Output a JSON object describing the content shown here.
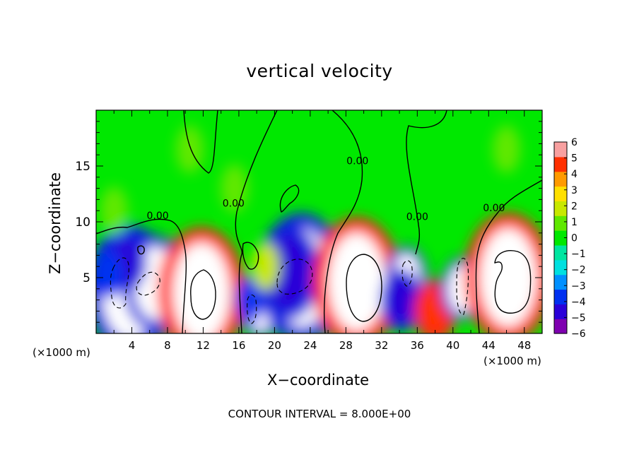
{
  "chart_data": {
    "type": "heatmap",
    "title": "vertical velocity",
    "xlabel": "X−coordinate",
    "ylabel": "Z−coordinate",
    "x_unit_left": "(×1000 m)",
    "x_unit_right": "(×1000 m)",
    "x_ticks": [
      4,
      8,
      12,
      16,
      20,
      24,
      28,
      32,
      36,
      40,
      44,
      48
    ],
    "y_ticks": [
      5,
      10,
      15
    ],
    "xlim": [
      0,
      50
    ],
    "ylim": [
      0,
      20
    ],
    "colorbar": {
      "ticks": [
        6,
        5,
        4,
        3,
        2,
        1,
        0,
        -1,
        -2,
        -3,
        -4,
        -5,
        -6
      ],
      "tick_labels": [
        "6",
        "5",
        "4",
        "3",
        "2",
        "1",
        "0",
        "−1",
        "−2",
        "−3",
        "−4",
        "−5",
        "−6"
      ],
      "range": [
        -6,
        6
      ],
      "colors": [
        "#7f00b0",
        "#2a00d8",
        "#0030f0",
        "#0090ff",
        "#00e0e0",
        "#00e6a0",
        "#00e800",
        "#60e800",
        "#c8e800",
        "#ffe000",
        "#ff9a00",
        "#ff3000",
        "#f8a0a0"
      ]
    },
    "contour_labels": [
      {
        "text": "0.00",
        "x": 6.9,
        "y": 10.5
      },
      {
        "text": "0.00",
        "x": 15.4,
        "y": 11.6
      },
      {
        "text": "0.00",
        "x": 29.3,
        "y": 15.4
      },
      {
        "text": "0.00",
        "x": 36.0,
        "y": 10.4
      },
      {
        "text": "0.00",
        "x": 44.6,
        "y": 11.2
      }
    ],
    "cells": [
      {
        "x": 3.8,
        "y": 3.9,
        "w": 3,
        "v": -6
      },
      {
        "x": 6.6,
        "y": 4.5,
        "w": 2,
        "v": -6
      },
      {
        "x": 3.3,
        "y": 6.4,
        "w": 1,
        "v": -5
      },
      {
        "x": 1.5,
        "y": 5.3,
        "w": 1,
        "v": -4
      },
      {
        "x": 11.8,
        "y": 3.7,
        "w": 3,
        "v": 6
      },
      {
        "x": 18.4,
        "y": 2.3,
        "w": 1,
        "v": -6
      },
      {
        "x": 23.0,
        "y": 5.0,
        "w": 3,
        "v": -6
      },
      {
        "x": 21.5,
        "y": 5.5,
        "w": 2,
        "v": -5
      },
      {
        "x": 17.2,
        "y": 3.0,
        "w": 1,
        "v": -4
      },
      {
        "x": 29.2,
        "y": 4.6,
        "w": 3,
        "v": 6
      },
      {
        "x": 34.8,
        "y": 5.0,
        "w": 1,
        "v": -6
      },
      {
        "x": 34.2,
        "y": 3.0,
        "w": 1,
        "v": -5
      },
      {
        "x": 38.0,
        "y": 2.0,
        "w": 1,
        "v": 5
      },
      {
        "x": 41.0,
        "y": 4.0,
        "w": 1,
        "v": -6
      },
      {
        "x": 46.2,
        "y": 5.0,
        "w": 3,
        "v": 6
      },
      {
        "x": 19.0,
        "y": 6.0,
        "w": 1,
        "v": 2
      },
      {
        "x": 15.5,
        "y": 13.0,
        "w": 1,
        "v": 1
      },
      {
        "x": 10.5,
        "y": 16.5,
        "w": 1,
        "v": 1
      },
      {
        "x": 2.0,
        "y": 11.0,
        "w": 1,
        "v": 1
      },
      {
        "x": 46.0,
        "y": 16.5,
        "w": 1,
        "v": 1
      }
    ]
  },
  "footer": "CONTOUR INTERVAL = 8.000E+00"
}
